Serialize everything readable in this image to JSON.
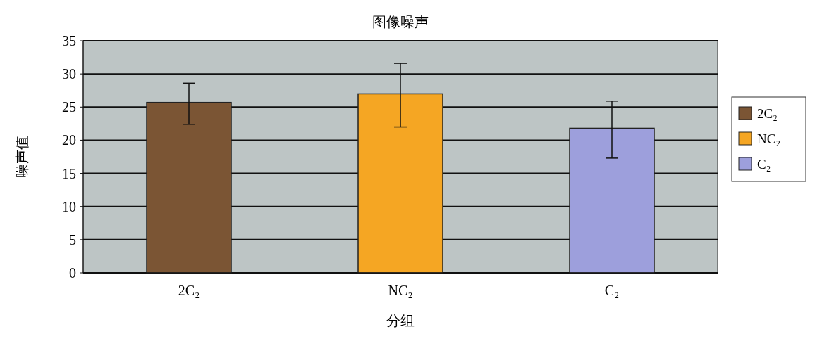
{
  "chart_data": {
    "type": "bar",
    "title": "图像噪声",
    "xlabel": "分组",
    "ylabel": "噪声值",
    "categories": [
      "2C₂",
      "NC₂",
      "C₂"
    ],
    "series": [
      {
        "name": "2C₂",
        "color": "#7b5534",
        "values": [
          25.7,
          null,
          null
        ],
        "errors": [
          [
            22.4,
            28.6
          ],
          null,
          null
        ]
      },
      {
        "name": "NC₂",
        "color": "#f5a623",
        "values": [
          null,
          27.0,
          null
        ],
        "errors": [
          null,
          [
            22.0,
            31.6
          ],
          null
        ]
      },
      {
        "name": "C₂",
        "color": "#9d9fdc",
        "values": [
          null,
          null,
          21.8
        ],
        "errors": [
          null,
          null,
          [
            17.3,
            25.9
          ]
        ]
      }
    ],
    "ylim": [
      0,
      35
    ],
    "yticks": [
      0,
      5,
      10,
      15,
      20,
      25,
      30,
      35
    ],
    "grid": "y",
    "legend": "right"
  }
}
